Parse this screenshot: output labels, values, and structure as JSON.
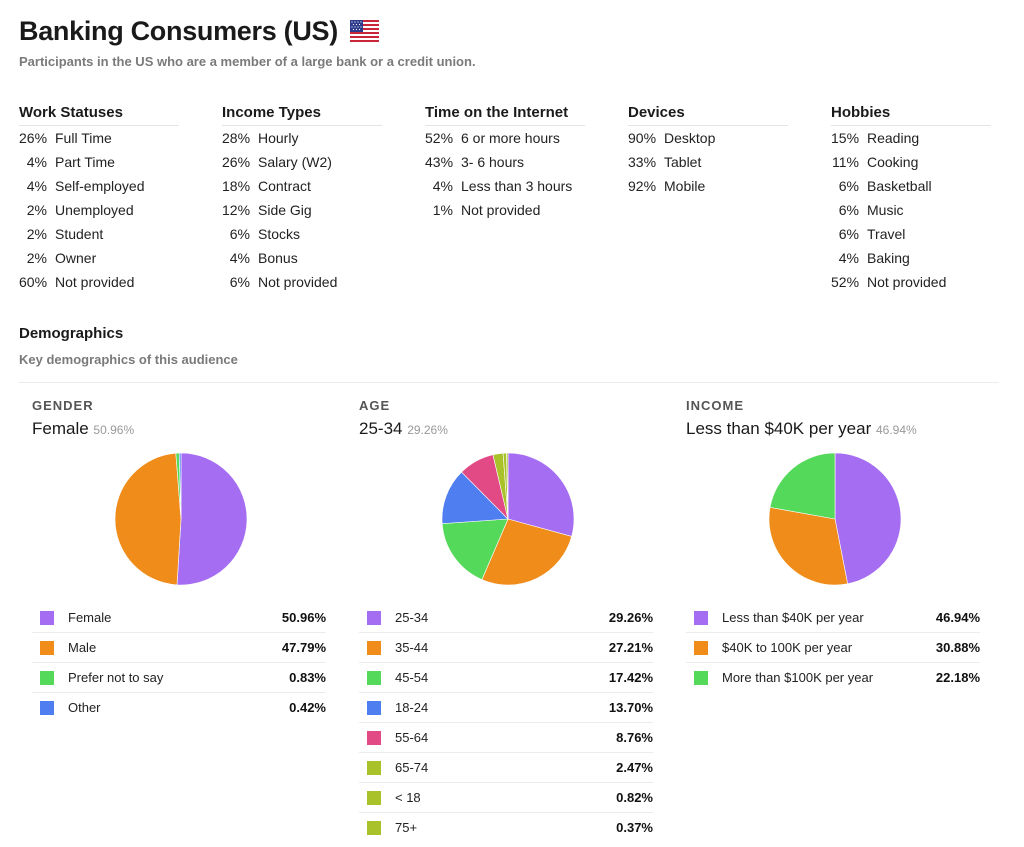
{
  "header": {
    "title": "Banking Consumers (US)",
    "subtitle": "Participants in the US who are a member of a large bank or a credit union.",
    "flag_icon": "us-flag-icon"
  },
  "stats": [
    {
      "title": "Work Statuses",
      "items": [
        {
          "pct": "26%",
          "label": "Full Time"
        },
        {
          "pct": "4%",
          "label": "Part Time"
        },
        {
          "pct": "4%",
          "label": "Self-employed"
        },
        {
          "pct": "2%",
          "label": "Unemployed"
        },
        {
          "pct": "2%",
          "label": "Student"
        },
        {
          "pct": "2%",
          "label": "Owner"
        },
        {
          "pct": "60%",
          "label": "Not provided"
        }
      ]
    },
    {
      "title": "Income Types",
      "items": [
        {
          "pct": "28%",
          "label": "Hourly"
        },
        {
          "pct": "26%",
          "label": "Salary (W2)"
        },
        {
          "pct": "18%",
          "label": "Contract"
        },
        {
          "pct": "12%",
          "label": "Side Gig"
        },
        {
          "pct": "6%",
          "label": "Stocks"
        },
        {
          "pct": "4%",
          "label": "Bonus"
        },
        {
          "pct": "6%",
          "label": "Not provided"
        }
      ]
    },
    {
      "title": "Time on the Internet",
      "items": [
        {
          "pct": "52%",
          "label": "6 or more hours"
        },
        {
          "pct": "43%",
          "label": "3- 6 hours"
        },
        {
          "pct": "4%",
          "label": "Less than 3 hours"
        },
        {
          "pct": "1%",
          "label": "Not provided"
        }
      ]
    },
    {
      "title": "Devices",
      "items": [
        {
          "pct": "90%",
          "label": "Desktop"
        },
        {
          "pct": "33%",
          "label": "Tablet"
        },
        {
          "pct": "92%",
          "label": "Mobile"
        }
      ]
    },
    {
      "title": "Hobbies",
      "items": [
        {
          "pct": "15%",
          "label": "Reading"
        },
        {
          "pct": "11%",
          "label": "Cooking"
        },
        {
          "pct": "6%",
          "label": "Basketball"
        },
        {
          "pct": "6%",
          "label": "Music"
        },
        {
          "pct": "6%",
          "label": "Travel"
        },
        {
          "pct": "4%",
          "label": "Baking"
        },
        {
          "pct": "52%",
          "label": "Not provided"
        }
      ]
    }
  ],
  "demographics": {
    "title": "Demographics",
    "subtitle": "Key demographics of this audience"
  },
  "colors": {
    "purple": "#a56ef2",
    "orange": "#ef8c1a",
    "green": "#55d95b",
    "blue": "#4f7ef0",
    "pink": "#e24a86",
    "olive": "#a9c229"
  },
  "chart_data": [
    {
      "type": "pie",
      "title": "GENDER",
      "top_label": "Female",
      "top_value": "50.96%",
      "slices": [
        {
          "label": "Female",
          "value": 50.96,
          "display": "50.96%",
          "color": "#a56ef2"
        },
        {
          "label": "Male",
          "value": 47.79,
          "display": "47.79%",
          "color": "#ef8c1a"
        },
        {
          "label": "Prefer not to say",
          "value": 0.83,
          "display": "0.83%",
          "color": "#55d95b"
        },
        {
          "label": "Other",
          "value": 0.42,
          "display": "0.42%",
          "color": "#4f7ef0"
        }
      ]
    },
    {
      "type": "pie",
      "title": "AGE",
      "top_label": "25-34",
      "top_value": "29.26%",
      "slices": [
        {
          "label": "25-34",
          "value": 29.26,
          "display": "29.26%",
          "color": "#a56ef2"
        },
        {
          "label": "35-44",
          "value": 27.21,
          "display": "27.21%",
          "color": "#ef8c1a"
        },
        {
          "label": "45-54",
          "value": 17.42,
          "display": "17.42%",
          "color": "#55d95b"
        },
        {
          "label": "18-24",
          "value": 13.7,
          "display": "13.70%",
          "color": "#4f7ef0"
        },
        {
          "label": "55-64",
          "value": 8.76,
          "display": "8.76%",
          "color": "#e24a86"
        },
        {
          "label": "65-74",
          "value": 2.47,
          "display": "2.47%",
          "color": "#a9c229"
        },
        {
          "label": "< 18",
          "value": 0.82,
          "display": "0.82%",
          "color": "#a9c229"
        },
        {
          "label": "75+",
          "value": 0.37,
          "display": "0.37%",
          "color": "#a9c229"
        }
      ]
    },
    {
      "type": "pie",
      "title": "INCOME",
      "top_label": "Less than $40K per year",
      "top_value": "46.94%",
      "slices": [
        {
          "label": "Less than $40K per year",
          "value": 46.94,
          "display": "46.94%",
          "color": "#a56ef2"
        },
        {
          "label": "$40K to 100K per year",
          "value": 30.88,
          "display": "30.88%",
          "color": "#ef8c1a"
        },
        {
          "label": "More than $100K per year",
          "value": 22.18,
          "display": "22.18%",
          "color": "#55d95b"
        }
      ]
    }
  ]
}
